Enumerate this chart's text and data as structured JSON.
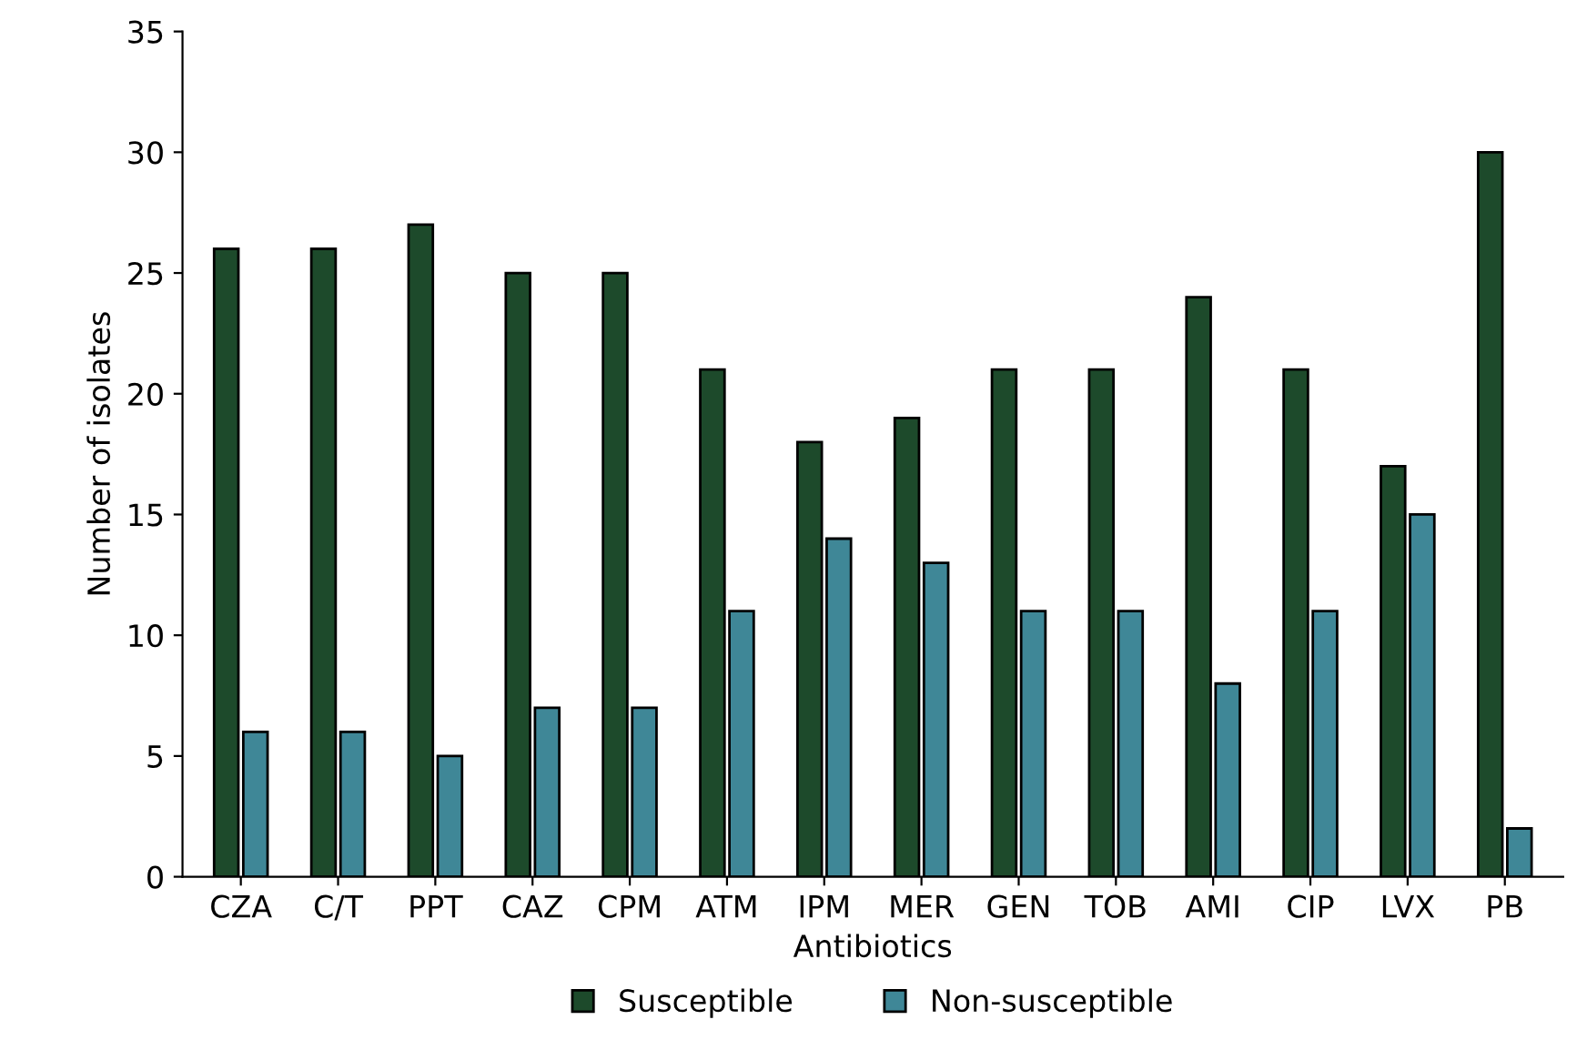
{
  "chart_data": {
    "type": "bar",
    "xlabel": "Antibiotics",
    "ylabel": "Number of isolates",
    "categories": [
      "CZA",
      "C/T",
      "PPT",
      "CAZ",
      "CPM",
      "ATM",
      "IPM",
      "MER",
      "GEN",
      "TOB",
      "AMI",
      "CIP",
      "LVX",
      "PB"
    ],
    "series": [
      {
        "name": "Susceptible",
        "color": "#1d4a2b",
        "values": [
          26,
          26,
          27,
          25,
          25,
          21,
          18,
          19,
          21,
          21,
          24,
          21,
          17,
          30
        ]
      },
      {
        "name": "Non-susceptible",
        "color": "#3f8797",
        "values": [
          6,
          6,
          5,
          7,
          7,
          11,
          14,
          13,
          11,
          11,
          8,
          11,
          15,
          2
        ]
      }
    ],
    "ylim": [
      0,
      35
    ],
    "yticks": [
      0,
      5,
      10,
      15,
      20,
      25,
      30,
      35
    ],
    "grid": false,
    "legend": "bottom"
  }
}
